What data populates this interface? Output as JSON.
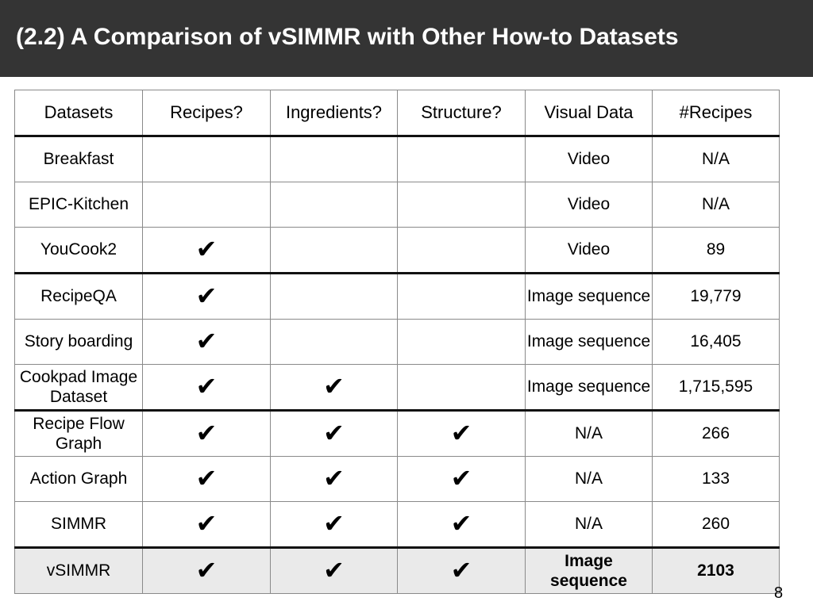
{
  "slide": {
    "title": "(2.2) A Comparison of vSIMMR with Other How-to Datasets",
    "page_number": "8"
  },
  "table": {
    "headers": [
      "Datasets",
      "Recipes?",
      "Ingredients?",
      "Structure?",
      "Visual Data",
      "#Recipes"
    ],
    "check_glyph": "✔",
    "rows": [
      {
        "dataset": "Breakfast",
        "recipes": "",
        "ingredients": "",
        "structure": "",
        "visual": "Video",
        "count": "N/A"
      },
      {
        "dataset": "EPIC-Kitchen",
        "recipes": "",
        "ingredients": "",
        "structure": "",
        "visual": "Video",
        "count": "N/A"
      },
      {
        "dataset": "YouCook2",
        "recipes": "✔",
        "ingredients": "",
        "structure": "",
        "visual": "Video",
        "count": "89"
      },
      {
        "dataset": "RecipeQA",
        "recipes": "✔",
        "ingredients": "",
        "structure": "",
        "visual": "Image sequence",
        "count": "19,779"
      },
      {
        "dataset": "Story boarding",
        "recipes": "✔",
        "ingredients": "",
        "structure": "",
        "visual": "Image sequence",
        "count": "16,405"
      },
      {
        "dataset": "Cookpad Image Dataset",
        "recipes": "✔",
        "ingredients": "✔",
        "structure": "",
        "visual": "Image sequence",
        "count": "1,715,595"
      },
      {
        "dataset": "Recipe Flow Graph",
        "recipes": "✔",
        "ingredients": "✔",
        "structure": "✔",
        "visual": "N/A",
        "count": "266"
      },
      {
        "dataset": "Action Graph",
        "recipes": "✔",
        "ingredients": "✔",
        "structure": "✔",
        "visual": "N/A",
        "count": "133"
      },
      {
        "dataset": "SIMMR",
        "recipes": "✔",
        "ingredients": "✔",
        "structure": "✔",
        "visual": "N/A",
        "count": "260"
      },
      {
        "dataset": "vSIMMR",
        "recipes": "✔",
        "ingredients": "✔",
        "structure": "✔",
        "visual": "Image sequence",
        "count": "2103"
      }
    ]
  }
}
